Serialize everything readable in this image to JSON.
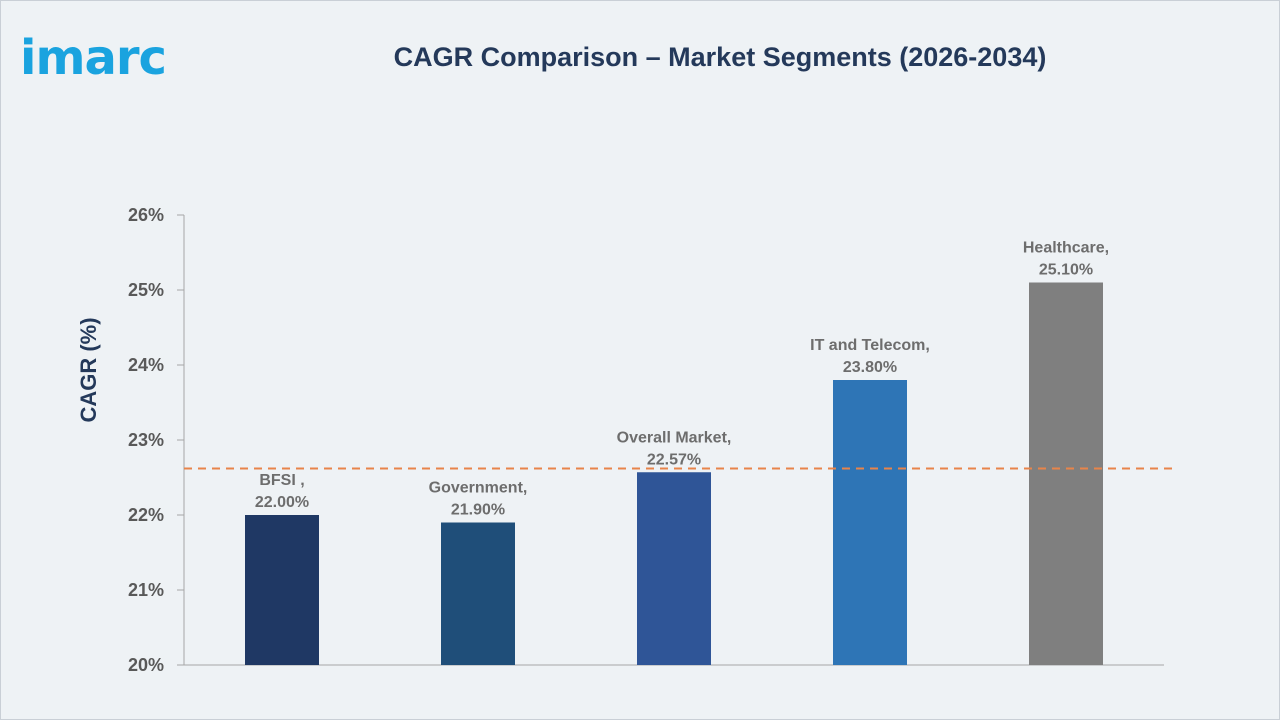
{
  "brand": {
    "logo_text": "imarc",
    "logo_color": "#1aa3df"
  },
  "chart_data": {
    "type": "bar",
    "title": "CAGR Comparison – Market Segments (2026-2034)",
    "ylabel": "CAGR (%)",
    "xlabel": "",
    "ylim": [
      20,
      26
    ],
    "yticks": [
      "20%",
      "21%",
      "22%",
      "23%",
      "24%",
      "25%",
      "26%"
    ],
    "categories": [
      "BFSI",
      "Government",
      "Overall Market",
      "IT and Telecom",
      "Healthcare"
    ],
    "values": [
      22.0,
      21.9,
      22.57,
      23.8,
      25.1
    ],
    "data_labels": [
      [
        "BFSI ,",
        "22.00%"
      ],
      [
        "Government,",
        "21.90%"
      ],
      [
        "Overall Market,",
        "22.57%"
      ],
      [
        "IT and Telecom,",
        "23.80%"
      ],
      [
        "Healthcare,",
        "25.10%"
      ]
    ],
    "colors": [
      "#1f3864",
      "#1f4e79",
      "#2f5597",
      "#2e75b6",
      "#7f7f7f"
    ],
    "reference_line": {
      "value": 22.62,
      "style": "dashed",
      "color": "#e8844a"
    },
    "grid": false,
    "legend": "none"
  }
}
